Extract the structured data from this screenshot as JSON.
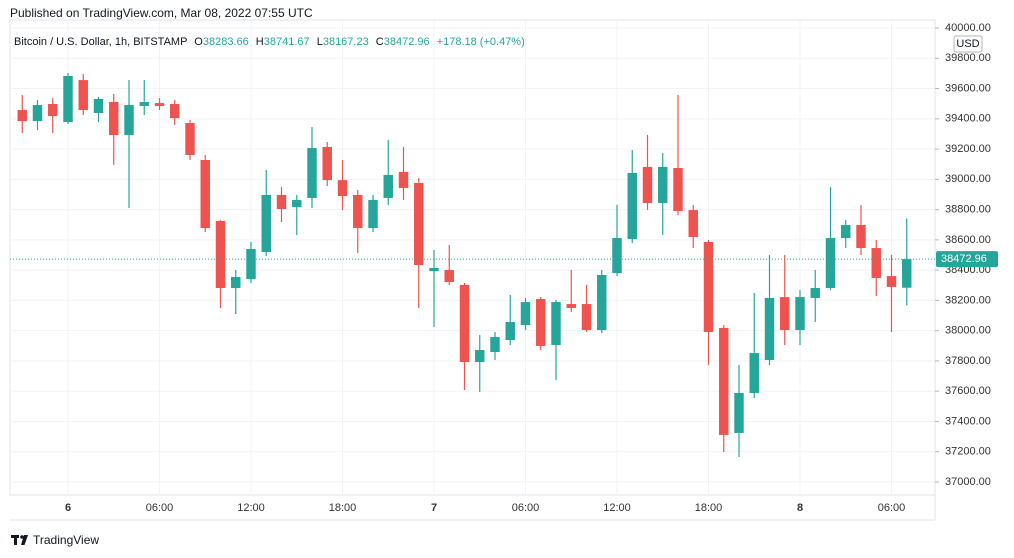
{
  "header": {
    "published": "Published on TradingView.com, Mar 08, 2022 07:55 UTC"
  },
  "footer": {
    "brand": "TradingView"
  },
  "chart_data": {
    "type": "candlestick",
    "title": "Bitcoin / U.S. Dollar, 1h, BITSTAMP",
    "open_label": "O",
    "high_label": "H",
    "low_label": "L",
    "close_label": "C",
    "change": "+178.18 (+0.47%)",
    "currency": "USD",
    "up_color": "#26a69a",
    "down_color": "#ef5350",
    "categories": [
      null,
      null,
      null,
      "6",
      null,
      null,
      null,
      null,
      null,
      "06:00",
      null,
      null,
      null,
      null,
      null,
      "12:00",
      null,
      null,
      null,
      null,
      null,
      "18:00",
      null,
      null,
      null,
      null,
      null,
      "7",
      null,
      null,
      null,
      null,
      null,
      "06:00",
      null,
      null,
      null,
      null,
      null,
      "12:00",
      null,
      null,
      null,
      null,
      null,
      "18:00",
      null,
      null,
      null,
      null,
      null,
      "8",
      null,
      null,
      null,
      null,
      null,
      "06:00",
      null
    ],
    "open": [
      39458,
      39385,
      39498,
      39379,
      39656,
      39438,
      39511,
      39293,
      39485,
      39504,
      39498,
      39372,
      39128,
      38725,
      38282,
      38341,
      38520,
      38897,
      38817,
      38877,
      39214,
      38995,
      38897,
      38678,
      38877,
      39049,
      38976,
      38394,
      38401,
      38302,
      37793,
      37859,
      37938,
      38037,
      38209,
      37905,
      38176,
      38176,
      38004,
      38381,
      38606,
      39082,
      38844,
      39075,
      38797,
      38586,
      38018,
      37324,
      37588,
      37806,
      38222,
      38004,
      38216,
      38282,
      38612,
      38698,
      38546,
      38361,
      38283.66
    ],
    "high": [
      39557,
      39524,
      39537,
      39703,
      39696,
      39544,
      39564,
      39656,
      39656,
      39537,
      39524,
      39392,
      39161,
      38731,
      38401,
      38586,
      39062,
      38950,
      38897,
      39346,
      39247,
      39128,
      38930,
      38897,
      39260,
      39214,
      39009,
      38533,
      38566,
      38315,
      37971,
      37991,
      38236,
      38216,
      38222,
      38203,
      38401,
      38302,
      38401,
      38831,
      39194,
      39293,
      39174,
      39557,
      38830,
      38599,
      38037,
      37773,
      38249,
      38500,
      38500,
      38269,
      38401,
      38949,
      38731,
      38830,
      38599,
      38500,
      38741.67
    ],
    "low": [
      39306,
      39326,
      39306,
      39366,
      39425,
      39379,
      39095,
      38811,
      39425,
      39458,
      39359,
      39128,
      38652,
      38150,
      38110,
      38315,
      38494,
      38718,
      38632,
      38811,
      38956,
      38797,
      38513,
      38652,
      38830,
      38863,
      38150,
      38024,
      38302,
      37608,
      37595,
      37806,
      37905,
      38004,
      37872,
      37674,
      38123,
      37991,
      37985,
      38361,
      38579,
      38798,
      38632,
      38764,
      38546,
      37773,
      37198,
      37165,
      37555,
      37773,
      37905,
      37905,
      38057,
      38269,
      38546,
      38500,
      38229,
      37991,
      38167.23
    ],
    "close": [
      39385,
      39491,
      39418,
      39683,
      39458,
      39531,
      39293,
      39491,
      39511,
      39485,
      39405,
      39161,
      38678,
      38282,
      38355,
      38540,
      38897,
      38804,
      38864,
      39207,
      38995,
      38890,
      38678,
      38864,
      39029,
      38943,
      38434,
      38414,
      38322,
      37793,
      37872,
      37958,
      38057,
      38189,
      37899,
      38189,
      38150,
      38004,
      38368,
      38612,
      39042,
      38844,
      39082,
      38791,
      38619,
      37991,
      37311,
      37588,
      37852,
      38216,
      38004,
      38222,
      38282,
      38612,
      38698,
      38546,
      38348,
      38289,
      38472.96
    ],
    "ylim": [
      36914,
      40053
    ],
    "yticks": [
      {
        "value": 37000,
        "label": "37000.00"
      },
      {
        "value": 37200,
        "label": "37200.00"
      },
      {
        "value": 37400,
        "label": "37400.00"
      },
      {
        "value": 37600,
        "label": "37600.00"
      },
      {
        "value": 37800,
        "label": "37800.00"
      },
      {
        "value": 38000,
        "label": "38000.00"
      },
      {
        "value": 38200,
        "label": "38200.00"
      },
      {
        "value": 38400,
        "label": "38400.00"
      },
      {
        "value": 38600,
        "label": "38600.00"
      },
      {
        "value": 38800,
        "label": "38800.00"
      },
      {
        "value": 39000,
        "label": "39000.00"
      },
      {
        "value": 39200,
        "label": "39200.00"
      },
      {
        "value": 39400,
        "label": "39400.00"
      },
      {
        "value": 39600,
        "label": "39600.00"
      },
      {
        "value": 39800,
        "label": "39800.00"
      },
      {
        "value": 40000,
        "label": "40000.00"
      }
    ]
  }
}
